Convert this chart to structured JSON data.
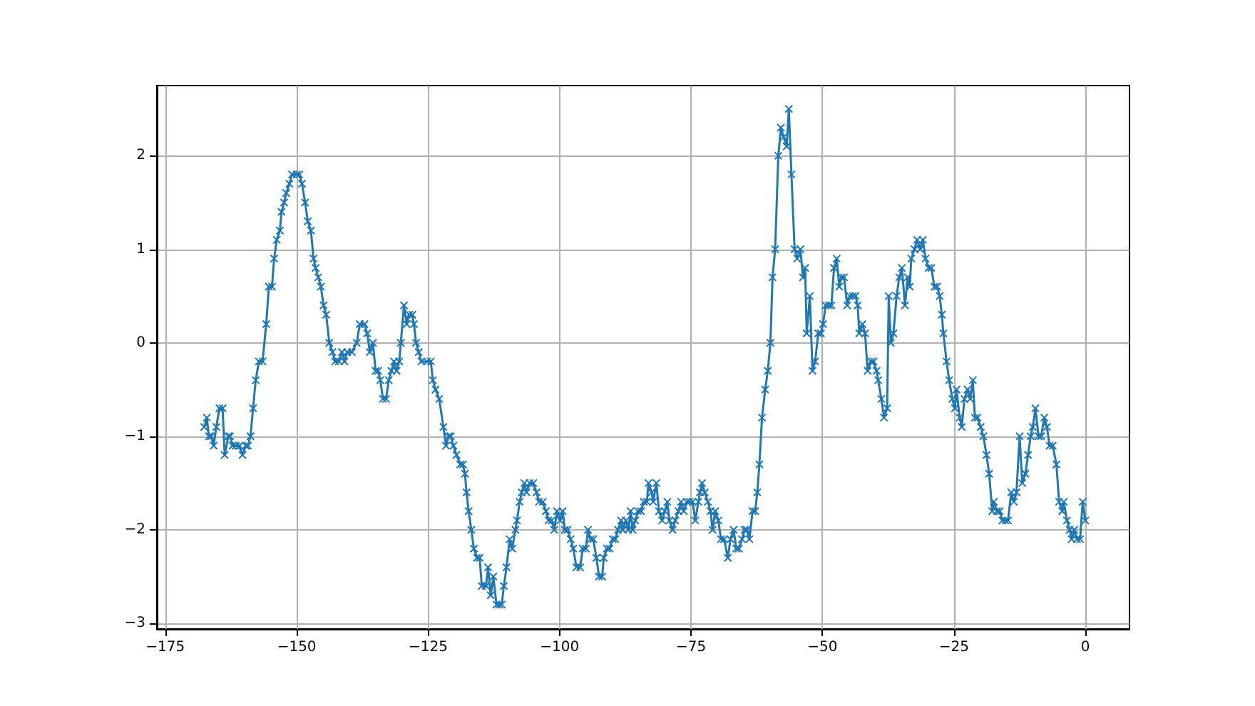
{
  "chart_data": {
    "type": "line",
    "x": [
      -167.6,
      -167.1,
      -166.7,
      -166.3,
      -165.8,
      -165.3,
      -164.7,
      -164.1,
      -163.7,
      -163.0,
      -162.7,
      -162.2,
      -161.6,
      -160.9,
      -160.3,
      -159.7,
      -159.3,
      -158.8,
      -158.3,
      -157.8,
      -157.2,
      -156.5,
      -155.8,
      -155.3,
      -154.7,
      -154.3,
      -153.8,
      -153.2,
      -152.9,
      -152.4,
      -152.0,
      -151.4,
      -150.9,
      -150.0,
      -149.5,
      -149.0,
      -148.4,
      -147.9,
      -147.3,
      -146.8,
      -146.4,
      -145.9,
      -145.4,
      -144.9,
      -144.4,
      -143.8,
      -143.2,
      -142.7,
      -142.0,
      -141.4,
      -140.9,
      -140.4,
      -139.5,
      -138.6,
      -138.0,
      -137.1,
      -136.6,
      -136.1,
      -135.5,
      -135.0,
      -134.5,
      -134.1,
      -133.6,
      -133.0,
      -132.5,
      -132.0,
      -131.5,
      -131.0,
      -130.5,
      -130.2,
      -129.6,
      -129.1,
      -128.6,
      -128.0,
      -127.7,
      -127.3,
      -126.8,
      -126.3,
      -125.2,
      -124.5,
      -124.1,
      -123.6,
      -122.9,
      -122.1,
      -121.6,
      -121.1,
      -120.7,
      -120.2,
      -119.6,
      -118.9,
      -118.4,
      -118.0,
      -117.7,
      -117.3,
      -116.8,
      -116.3,
      -115.7,
      -115.2,
      -114.8,
      -114.0,
      -113.6,
      -113.1,
      -112.6,
      -112.0,
      -111.5,
      -111.0,
      -110.6,
      -110.1,
      -109.5,
      -109.0,
      -108.4,
      -108.1,
      -107.6,
      -107.2,
      -106.7,
      -106.3,
      -105.7,
      -105.0,
      -104.4,
      -103.9,
      -103.2,
      -102.6,
      -102.1,
      -101.5,
      -101.0,
      -100.5,
      -99.9,
      -99.4,
      -99.0,
      -98.5,
      -97.9,
      -97.4,
      -96.8,
      -96.1,
      -95.6,
      -95.0,
      -94.6,
      -94.1,
      -93.6,
      -93.0,
      -92.5,
      -91.9,
      -91.6,
      -91.0,
      -90.5,
      -89.9,
      -89.4,
      -88.9,
      -88.3,
      -88.0,
      -87.4,
      -86.9,
      -86.5,
      -86.1,
      -85.6,
      -85.1,
      -84.5,
      -84.0,
      -83.4,
      -83.1,
      -82.5,
      -82.2,
      -81.6,
      -81.1,
      -80.5,
      -80.0,
      -79.5,
      -79.1,
      -78.5,
      -78.0,
      -77.4,
      -76.9,
      -76.4,
      -75.8,
      -75.3,
      -74.7,
      -74.2,
      -73.6,
      -73.3,
      -72.9,
      -72.4,
      -71.8,
      -71.3,
      -70.9,
      -70.4,
      -69.8,
      -69.3,
      -68.7,
      -68.0,
      -67.5,
      -66.9,
      -66.4,
      -65.9,
      -65.3,
      -64.8,
      -64.4,
      -63.9,
      -63.3,
      -62.8,
      -62.4,
      -62.0,
      -61.5,
      -60.9,
      -60.4,
      -59.9,
      -59.5,
      -59.0,
      -58.4,
      -57.9,
      -57.4,
      -56.8,
      -56.4,
      -55.9,
      -55.3,
      -54.8,
      -54.2,
      -53.7,
      -53.3,
      -53.0,
      -52.4,
      -51.9,
      -51.4,
      -50.8,
      -50.3,
      -49.9,
      -49.4,
      -48.8,
      -48.3,
      -47.8,
      -47.3,
      -46.8,
      -46.4,
      -45.9,
      -45.3,
      -44.8,
      -44.2,
      -43.7,
      -43.3,
      -43.0,
      -42.4,
      -41.9,
      -41.4,
      -40.8,
      -40.3,
      -39.7,
      -39.4,
      -38.8,
      -38.3,
      -37.7,
      -37.4,
      -37.0,
      -36.5,
      -35.9,
      -35.4,
      -34.9,
      -34.3,
      -33.8,
      -33.4,
      -33.1,
      -32.5,
      -32.0,
      -31.4,
      -30.9,
      -30.4,
      -29.8,
      -29.3,
      -28.7,
      -28.2,
      -27.7,
      -27.3,
      -27.0,
      -26.4,
      -25.9,
      -25.3,
      -24.8,
      -24.5,
      -23.9,
      -23.5,
      -23.0,
      -22.4,
      -21.9,
      -21.4,
      -21.0,
      -20.5,
      -19.9,
      -19.4,
      -18.8,
      -18.3,
      -17.7,
      -17.4,
      -16.8,
      -16.3,
      -15.8,
      -15.2,
      -14.7,
      -14.1,
      -13.6,
      -13.1,
      -12.5,
      -12.0,
      -11.4,
      -10.9,
      -10.4,
      -10.0,
      -9.5,
      -8.9,
      -8.4,
      -7.8,
      -7.3,
      -6.8,
      -6.2,
      -5.5,
      -5.0,
      -4.4,
      -4.1,
      -3.5,
      -3.0,
      -2.6,
      -2.1,
      -1.6,
      -1.0,
      -0.5,
      0.0
    ],
    "series": [
      {
        "color": "#1f77b4",
        "values": [
          -0.9,
          -0.8,
          -1.0,
          -1.0,
          -1.1,
          -0.9,
          -0.7,
          -0.7,
          -1.2,
          -1.0,
          -1.0,
          -1.1,
          -1.1,
          -1.1,
          -1.2,
          -1.1,
          -1.1,
          -1.0,
          -0.7,
          -0.4,
          -0.2,
          -0.2,
          0.2,
          0.6,
          0.6,
          0.9,
          1.1,
          1.2,
          1.4,
          1.5,
          1.6,
          1.7,
          1.8,
          1.8,
          1.8,
          1.7,
          1.5,
          1.3,
          1.2,
          0.9,
          0.8,
          0.7,
          0.6,
          0.4,
          0.3,
          0.0,
          -0.1,
          -0.2,
          -0.2,
          -0.1,
          -0.2,
          -0.1,
          -0.1,
          0.0,
          0.2,
          0.2,
          0.1,
          -0.1,
          0.0,
          -0.3,
          -0.3,
          -0.4,
          -0.6,
          -0.6,
          -0.4,
          -0.3,
          -0.2,
          -0.3,
          -0.2,
          0.0,
          0.4,
          0.2,
          0.3,
          0.3,
          0.2,
          0.0,
          -0.1,
          -0.2,
          -0.2,
          -0.2,
          -0.4,
          -0.5,
          -0.6,
          -0.9,
          -1.1,
          -1.0,
          -1.0,
          -1.1,
          -1.2,
          -1.3,
          -1.3,
          -1.4,
          -1.6,
          -1.8,
          -2.0,
          -2.2,
          -2.3,
          -2.3,
          -2.6,
          -2.6,
          -2.4,
          -2.7,
          -2.5,
          -2.8,
          -2.8,
          -2.8,
          -2.6,
          -2.4,
          -2.1,
          -2.2,
          -2.0,
          -1.9,
          -1.7,
          -1.6,
          -1.5,
          -1.6,
          -1.5,
          -1.5,
          -1.6,
          -1.7,
          -1.7,
          -1.8,
          -1.9,
          -1.9,
          -2.0,
          -1.8,
          -1.9,
          -1.8,
          -2.0,
          -2.0,
          -2.1,
          -2.2,
          -2.4,
          -2.4,
          -2.2,
          -2.2,
          -2.0,
          -2.1,
          -2.1,
          -2.3,
          -2.5,
          -2.5,
          -2.3,
          -2.2,
          -2.2,
          -2.1,
          -2.1,
          -2.0,
          -1.9,
          -2.0,
          -1.9,
          -2.0,
          -1.8,
          -2.0,
          -1.9,
          -1.8,
          -1.8,
          -1.7,
          -1.7,
          -1.5,
          -1.6,
          -1.7,
          -1.5,
          -1.8,
          -1.9,
          -1.8,
          -1.7,
          -1.9,
          -2.0,
          -1.9,
          -1.8,
          -1.7,
          -1.8,
          -1.7,
          -1.7,
          -1.7,
          -1.9,
          -1.7,
          -1.6,
          -1.5,
          -1.6,
          -1.7,
          -1.8,
          -2.0,
          -1.8,
          -1.9,
          -2.1,
          -2.1,
          -2.3,
          -2.1,
          -2.0,
          -2.2,
          -2.2,
          -2.1,
          -2.0,
          -2.0,
          -2.1,
          -1.8,
          -1.8,
          -1.6,
          -1.3,
          -0.8,
          -0.5,
          -0.3,
          0.0,
          0.7,
          1.0,
          2.0,
          2.3,
          2.2,
          2.1,
          2.5,
          1.8,
          1.0,
          0.9,
          1.0,
          0.7,
          0.8,
          0.1,
          0.5,
          -0.3,
          -0.2,
          0.1,
          0.1,
          0.2,
          0.4,
          0.4,
          0.4,
          0.8,
          0.9,
          0.6,
          0.7,
          0.7,
          0.4,
          0.5,
          0.5,
          0.5,
          0.4,
          0.1,
          0.2,
          0.1,
          -0.3,
          -0.2,
          -0.2,
          -0.3,
          -0.4,
          -0.6,
          -0.8,
          -0.7,
          0.5,
          0.0,
          0.1,
          0.5,
          0.7,
          0.8,
          0.4,
          0.7,
          0.6,
          0.9,
          1.0,
          1.1,
          1.0,
          1.1,
          0.9,
          0.8,
          0.8,
          0.6,
          0.6,
          0.5,
          0.3,
          0.1,
          -0.2,
          -0.4,
          -0.6,
          -0.7,
          -0.5,
          -0.8,
          -0.9,
          -0.6,
          -0.5,
          -0.6,
          -0.4,
          -0.8,
          -0.8,
          -0.9,
          -1.0,
          -1.2,
          -1.4,
          -1.8,
          -1.7,
          -1.8,
          -1.8,
          -1.9,
          -1.9,
          -1.9,
          -1.6,
          -1.7,
          -1.6,
          -1.0,
          -1.5,
          -1.4,
          -1.2,
          -1.0,
          -0.9,
          -0.7,
          -1.0,
          -1.0,
          -0.8,
          -0.9,
          -1.1,
          -1.1,
          -1.3,
          -1.7,
          -1.8,
          -1.7,
          -1.9,
          -2.0,
          -2.1,
          -2.0,
          -2.1,
          -2.1,
          -1.7,
          -1.9
        ]
      }
    ],
    "xlim": [
      -176.6,
      8.4
    ],
    "xticks": [
      -175,
      -150,
      -125,
      -100,
      -75,
      -50,
      -25,
      0
    ],
    "ylim": [
      -3.06,
      2.75
    ],
    "yticks": [
      -3,
      -2,
      -1,
      0,
      1,
      2
    ],
    "grid": true,
    "marker": "cross",
    "line_style": "solid"
  }
}
